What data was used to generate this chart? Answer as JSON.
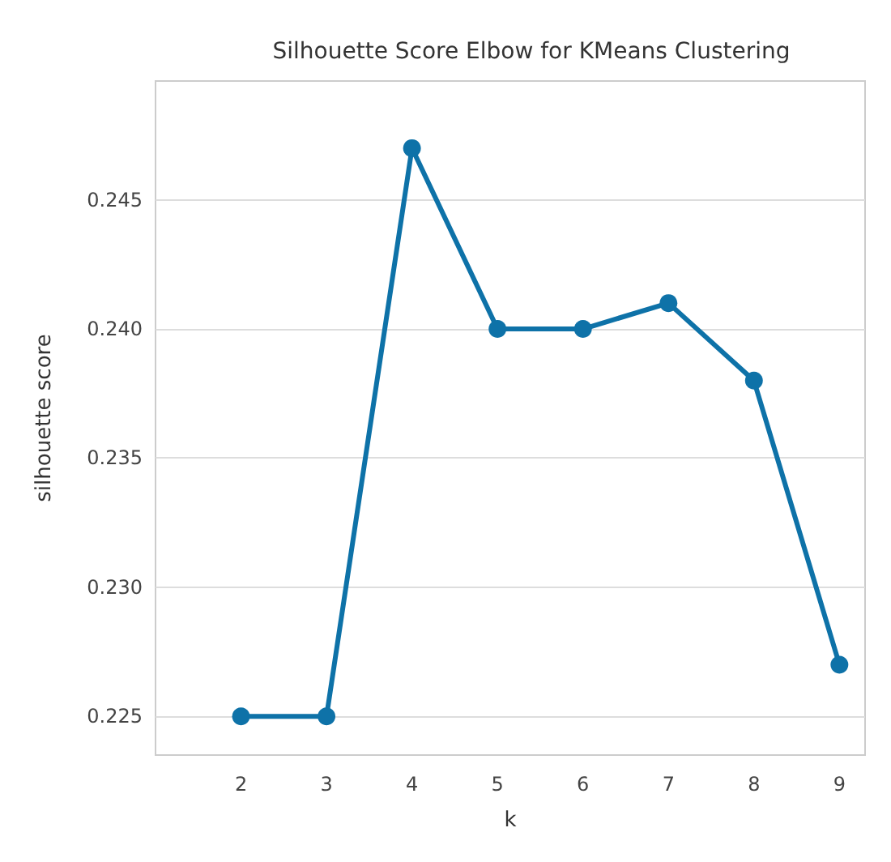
{
  "chart_data": {
    "type": "line",
    "title": "Silhouette Score Elbow for KMeans Clustering",
    "xlabel": "k",
    "ylabel": "silhouette score",
    "x": [
      2,
      3,
      4,
      5,
      6,
      7,
      8,
      9
    ],
    "series": [
      {
        "color": "#0e72a8",
        "values": [
          0.225,
          0.225,
          0.247,
          0.24,
          0.24,
          0.241,
          0.238,
          0.227
        ]
      }
    ],
    "xlim": [
      1,
      9.3
    ],
    "xticks": [
      2,
      3,
      4,
      5,
      6,
      7,
      8,
      9
    ],
    "ylim": [
      0.2235,
      0.2496
    ],
    "yticks": [
      0.225,
      {
        "value": 0.23,
        "label": "0.230"
      },
      0.235,
      {
        "value": 0.24,
        "label": "0.240"
      },
      0.245
    ],
    "grid": "y",
    "marker": "circle",
    "line_style": "solid"
  }
}
